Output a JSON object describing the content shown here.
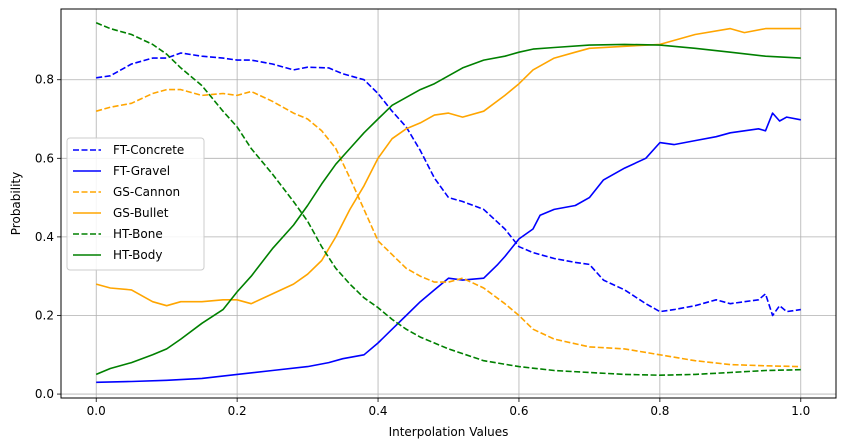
{
  "chart_data": {
    "type": "line",
    "title": "",
    "xlabel": "Interpolation Values",
    "ylabel": "Probability",
    "xlim": [
      -0.05,
      1.05
    ],
    "ylim": [
      -0.01,
      0.98
    ],
    "xticks": [
      0.0,
      0.2,
      0.4,
      0.6,
      0.8,
      1.0
    ],
    "xtick_labels": [
      "0.0",
      "0.2",
      "0.4",
      "0.6",
      "0.8",
      "1.0"
    ],
    "yticks": [
      0.0,
      0.2,
      0.4,
      0.6,
      0.8
    ],
    "ytick_labels": [
      "0.0",
      "0.2",
      "0.4",
      "0.6",
      "0.8"
    ],
    "grid": true,
    "legend_position": "center-left",
    "series": [
      {
        "name": "FT-Concrete",
        "color": "#0000ff",
        "dash": "dashed",
        "x": [
          0.0,
          0.02,
          0.05,
          0.08,
          0.1,
          0.12,
          0.15,
          0.18,
          0.2,
          0.22,
          0.25,
          0.28,
          0.3,
          0.33,
          0.35,
          0.38,
          0.4,
          0.42,
          0.44,
          0.46,
          0.48,
          0.5,
          0.52,
          0.55,
          0.58,
          0.6,
          0.62,
          0.65,
          0.68,
          0.7,
          0.72,
          0.75,
          0.78,
          0.8,
          0.82,
          0.85,
          0.88,
          0.9,
          0.92,
          0.94,
          0.95,
          0.96,
          0.97,
          0.98,
          1.0
        ],
        "y": [
          0.805,
          0.81,
          0.84,
          0.855,
          0.855,
          0.868,
          0.86,
          0.855,
          0.85,
          0.85,
          0.84,
          0.825,
          0.832,
          0.83,
          0.815,
          0.8,
          0.765,
          0.72,
          0.68,
          0.62,
          0.55,
          0.5,
          0.49,
          0.47,
          0.42,
          0.375,
          0.36,
          0.345,
          0.335,
          0.33,
          0.29,
          0.265,
          0.23,
          0.21,
          0.215,
          0.225,
          0.24,
          0.23,
          0.235,
          0.24,
          0.255,
          0.2,
          0.225,
          0.21,
          0.215
        ]
      },
      {
        "name": "FT-Gravel",
        "color": "#0000ff",
        "dash": "solid",
        "x": [
          0.0,
          0.05,
          0.1,
          0.15,
          0.2,
          0.25,
          0.3,
          0.33,
          0.35,
          0.38,
          0.4,
          0.42,
          0.44,
          0.46,
          0.48,
          0.5,
          0.52,
          0.55,
          0.57,
          0.58,
          0.6,
          0.62,
          0.63,
          0.65,
          0.68,
          0.7,
          0.72,
          0.75,
          0.78,
          0.8,
          0.82,
          0.85,
          0.88,
          0.9,
          0.92,
          0.94,
          0.95,
          0.96,
          0.97,
          0.98,
          1.0
        ],
        "y": [
          0.03,
          0.032,
          0.035,
          0.04,
          0.05,
          0.06,
          0.07,
          0.08,
          0.09,
          0.1,
          0.13,
          0.165,
          0.2,
          0.235,
          0.265,
          0.295,
          0.29,
          0.295,
          0.33,
          0.35,
          0.395,
          0.42,
          0.455,
          0.47,
          0.48,
          0.5,
          0.545,
          0.575,
          0.6,
          0.64,
          0.635,
          0.645,
          0.655,
          0.665,
          0.67,
          0.675,
          0.67,
          0.715,
          0.695,
          0.705,
          0.698
        ]
      },
      {
        "name": "GS-Cannon",
        "color": "#ffa500",
        "dash": "dashed",
        "x": [
          0.0,
          0.02,
          0.05,
          0.08,
          0.1,
          0.12,
          0.15,
          0.18,
          0.2,
          0.22,
          0.25,
          0.28,
          0.3,
          0.32,
          0.34,
          0.36,
          0.38,
          0.4,
          0.42,
          0.44,
          0.46,
          0.48,
          0.5,
          0.52,
          0.55,
          0.58,
          0.6,
          0.62,
          0.65,
          0.7,
          0.75,
          0.8,
          0.85,
          0.9,
          0.95,
          1.0
        ],
        "y": [
          0.72,
          0.73,
          0.74,
          0.765,
          0.775,
          0.775,
          0.76,
          0.765,
          0.76,
          0.77,
          0.745,
          0.715,
          0.7,
          0.67,
          0.625,
          0.55,
          0.47,
          0.39,
          0.355,
          0.32,
          0.3,
          0.285,
          0.285,
          0.295,
          0.27,
          0.23,
          0.2,
          0.165,
          0.14,
          0.12,
          0.115,
          0.1,
          0.085,
          0.075,
          0.072,
          0.07
        ]
      },
      {
        "name": "GS-Bullet",
        "color": "#ffa500",
        "dash": "solid",
        "x": [
          0.0,
          0.02,
          0.05,
          0.08,
          0.1,
          0.12,
          0.15,
          0.18,
          0.2,
          0.22,
          0.25,
          0.28,
          0.3,
          0.32,
          0.34,
          0.36,
          0.38,
          0.4,
          0.42,
          0.44,
          0.46,
          0.48,
          0.5,
          0.52,
          0.55,
          0.58,
          0.6,
          0.62,
          0.65,
          0.68,
          0.7,
          0.75,
          0.8,
          0.85,
          0.9,
          0.92,
          0.95,
          1.0
        ],
        "y": [
          0.28,
          0.27,
          0.265,
          0.235,
          0.225,
          0.235,
          0.235,
          0.24,
          0.24,
          0.23,
          0.255,
          0.28,
          0.305,
          0.34,
          0.4,
          0.47,
          0.53,
          0.6,
          0.65,
          0.675,
          0.69,
          0.71,
          0.715,
          0.705,
          0.72,
          0.76,
          0.79,
          0.825,
          0.855,
          0.87,
          0.88,
          0.885,
          0.89,
          0.915,
          0.93,
          0.92,
          0.93,
          0.93
        ]
      },
      {
        "name": "HT-Bone",
        "color": "#008000",
        "dash": "dashed",
        "x": [
          0.0,
          0.02,
          0.05,
          0.08,
          0.1,
          0.12,
          0.15,
          0.18,
          0.2,
          0.22,
          0.25,
          0.28,
          0.3,
          0.32,
          0.34,
          0.36,
          0.38,
          0.4,
          0.42,
          0.44,
          0.46,
          0.48,
          0.5,
          0.55,
          0.6,
          0.65,
          0.7,
          0.75,
          0.8,
          0.85,
          0.9,
          0.95,
          1.0
        ],
        "y": [
          0.945,
          0.93,
          0.915,
          0.89,
          0.865,
          0.83,
          0.785,
          0.72,
          0.68,
          0.625,
          0.56,
          0.49,
          0.44,
          0.375,
          0.32,
          0.28,
          0.245,
          0.22,
          0.19,
          0.165,
          0.145,
          0.13,
          0.115,
          0.085,
          0.07,
          0.06,
          0.055,
          0.05,
          0.048,
          0.05,
          0.055,
          0.06,
          0.062
        ]
      },
      {
        "name": "HT-Body",
        "color": "#008000",
        "dash": "solid",
        "x": [
          0.0,
          0.02,
          0.05,
          0.08,
          0.1,
          0.12,
          0.15,
          0.18,
          0.2,
          0.22,
          0.25,
          0.28,
          0.3,
          0.32,
          0.34,
          0.36,
          0.38,
          0.4,
          0.42,
          0.44,
          0.46,
          0.48,
          0.5,
          0.52,
          0.55,
          0.58,
          0.6,
          0.62,
          0.65,
          0.7,
          0.75,
          0.8,
          0.85,
          0.9,
          0.95,
          1.0
        ],
        "y": [
          0.05,
          0.065,
          0.08,
          0.1,
          0.115,
          0.14,
          0.18,
          0.215,
          0.26,
          0.3,
          0.37,
          0.43,
          0.48,
          0.535,
          0.585,
          0.625,
          0.665,
          0.7,
          0.735,
          0.755,
          0.775,
          0.79,
          0.81,
          0.83,
          0.85,
          0.86,
          0.87,
          0.878,
          0.882,
          0.888,
          0.89,
          0.888,
          0.88,
          0.87,
          0.86,
          0.855
        ]
      }
    ]
  }
}
